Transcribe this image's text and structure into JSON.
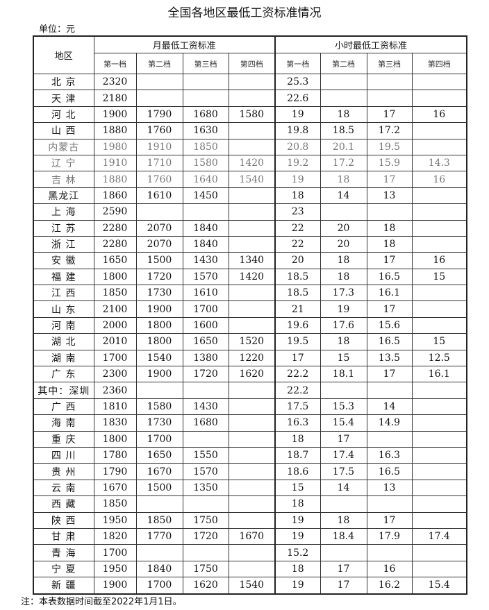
{
  "title": "全国各地区最低工资标准情况",
  "unit": "单位：元",
  "note": "注：本表数据时间截至2022年1月1日。",
  "header": {
    "region": "地区",
    "monthly": "月最低工资标准",
    "hourly": "小时最低工资标准",
    "tiers": [
      "第一档",
      "第二档",
      "第三档",
      "第四档"
    ]
  },
  "rows": [
    {
      "region": "北 京",
      "monthly": [
        "2320",
        "",
        "",
        ""
      ],
      "hourly": [
        "25.3",
        "",
        "",
        ""
      ]
    },
    {
      "region": "天 津",
      "monthly": [
        "2180",
        "",
        "",
        ""
      ],
      "hourly": [
        "22.6",
        "",
        "",
        ""
      ]
    },
    {
      "region": "河 北",
      "monthly": [
        "1900",
        "1790",
        "1680",
        "1580"
      ],
      "hourly": [
        "19",
        "18",
        "17",
        "16"
      ]
    },
    {
      "region": "山 西",
      "monthly": [
        "1880",
        "1760",
        "1630",
        ""
      ],
      "hourly": [
        "19.8",
        "18.5",
        "17.2",
        ""
      ]
    },
    {
      "region": "内蒙古",
      "monthly": [
        "1980",
        "1910",
        "1850",
        ""
      ],
      "hourly": [
        "20.8",
        "20.1",
        "19.5",
        ""
      ],
      "gray": true
    },
    {
      "region": "辽 宁",
      "monthly": [
        "1910",
        "1710",
        "1580",
        "1420"
      ],
      "hourly": [
        "19.2",
        "17.2",
        "15.9",
        "14.3"
      ],
      "gray": true
    },
    {
      "region": "吉 林",
      "monthly": [
        "1880",
        "1760",
        "1640",
        "1540"
      ],
      "hourly": [
        "19",
        "18",
        "17",
        "16"
      ],
      "gray": true
    },
    {
      "region": "黑龙江",
      "monthly": [
        "1860",
        "1610",
        "1450",
        ""
      ],
      "hourly": [
        "18",
        "14",
        "13",
        ""
      ]
    },
    {
      "region": "上 海",
      "monthly": [
        "2590",
        "",
        "",
        ""
      ],
      "hourly": [
        "23",
        "",
        "",
        ""
      ]
    },
    {
      "region": "江 苏",
      "monthly": [
        "2280",
        "2070",
        "1840",
        ""
      ],
      "hourly": [
        "22",
        "20",
        "18",
        ""
      ]
    },
    {
      "region": "浙 江",
      "monthly": [
        "2280",
        "2070",
        "1840",
        ""
      ],
      "hourly": [
        "22",
        "20",
        "18",
        ""
      ]
    },
    {
      "region": "安 徽",
      "monthly": [
        "1650",
        "1500",
        "1430",
        "1340"
      ],
      "hourly": [
        "20",
        "18",
        "17",
        "16"
      ]
    },
    {
      "region": "福 建",
      "monthly": [
        "1800",
        "1720",
        "1570",
        "1420"
      ],
      "hourly": [
        "18.5",
        "18",
        "16.5",
        "15"
      ]
    },
    {
      "region": "江 西",
      "monthly": [
        "1850",
        "1730",
        "1610",
        ""
      ],
      "hourly": [
        "18.5",
        "17.3",
        "16.1",
        ""
      ]
    },
    {
      "region": "山 东",
      "monthly": [
        "2100",
        "1900",
        "1700",
        ""
      ],
      "hourly": [
        "21",
        "19",
        "17",
        ""
      ]
    },
    {
      "region": "河 南",
      "monthly": [
        "2000",
        "1800",
        "1600",
        ""
      ],
      "hourly": [
        "19.6",
        "17.6",
        "15.6",
        ""
      ]
    },
    {
      "region": "湖 北",
      "monthly": [
        "2010",
        "1800",
        "1650",
        "1520"
      ],
      "hourly": [
        "19.5",
        "18",
        "16.5",
        "15"
      ]
    },
    {
      "region": "湖 南",
      "monthly": [
        "1700",
        "1540",
        "1380",
        "1220"
      ],
      "hourly": [
        "17",
        "15",
        "13.5",
        "12.5"
      ]
    },
    {
      "region": "广 东",
      "monthly": [
        "2300",
        "1900",
        "1720",
        "1620"
      ],
      "hourly": [
        "22.2",
        "18.1",
        "17",
        "16.1"
      ]
    },
    {
      "region": "其中：深圳",
      "monthly": [
        "2360",
        "",
        "",
        ""
      ],
      "hourly": [
        "22.2",
        "",
        "",
        ""
      ]
    },
    {
      "region": "广 西",
      "monthly": [
        "1810",
        "1580",
        "1430",
        ""
      ],
      "hourly": [
        "17.5",
        "15.3",
        "14",
        ""
      ]
    },
    {
      "region": "海 南",
      "monthly": [
        "1830",
        "1730",
        "1680",
        ""
      ],
      "hourly": [
        "16.3",
        "15.4",
        "14.9",
        ""
      ]
    },
    {
      "region": "重 庆",
      "monthly": [
        "1800",
        "1700",
        "",
        ""
      ],
      "hourly": [
        "18",
        "17",
        "",
        ""
      ]
    },
    {
      "region": "四 川",
      "monthly": [
        "1780",
        "1650",
        "1550",
        ""
      ],
      "hourly": [
        "18.7",
        "17.4",
        "16.3",
        ""
      ]
    },
    {
      "region": "贵 州",
      "monthly": [
        "1790",
        "1670",
        "1570",
        ""
      ],
      "hourly": [
        "18.6",
        "17.5",
        "16.5",
        ""
      ]
    },
    {
      "region": "云 南",
      "monthly": [
        "1670",
        "1500",
        "1350",
        ""
      ],
      "hourly": [
        "15",
        "14",
        "13",
        ""
      ]
    },
    {
      "region": "西 藏",
      "monthly": [
        "1850",
        "",
        "",
        ""
      ],
      "hourly": [
        "18",
        "",
        "",
        ""
      ]
    },
    {
      "region": "陕 西",
      "monthly": [
        "1950",
        "1850",
        "1750",
        ""
      ],
      "hourly": [
        "19",
        "18",
        "17",
        ""
      ]
    },
    {
      "region": "甘 肃",
      "monthly": [
        "1820",
        "1770",
        "1720",
        "1670"
      ],
      "hourly": [
        "19",
        "18.4",
        "17.9",
        "17.4"
      ]
    },
    {
      "region": "青 海",
      "monthly": [
        "1700",
        "",
        "",
        ""
      ],
      "hourly": [
        "15.2",
        "",
        "",
        ""
      ]
    },
    {
      "region": "宁 夏",
      "monthly": [
        "1950",
        "1840",
        "1750",
        ""
      ],
      "hourly": [
        "18",
        "17",
        "16",
        ""
      ]
    },
    {
      "region": "新 疆",
      "monthly": [
        "1900",
        "1700",
        "1620",
        "1540"
      ],
      "hourly": [
        "19",
        "17",
        "16.2",
        "15.4"
      ]
    }
  ]
}
